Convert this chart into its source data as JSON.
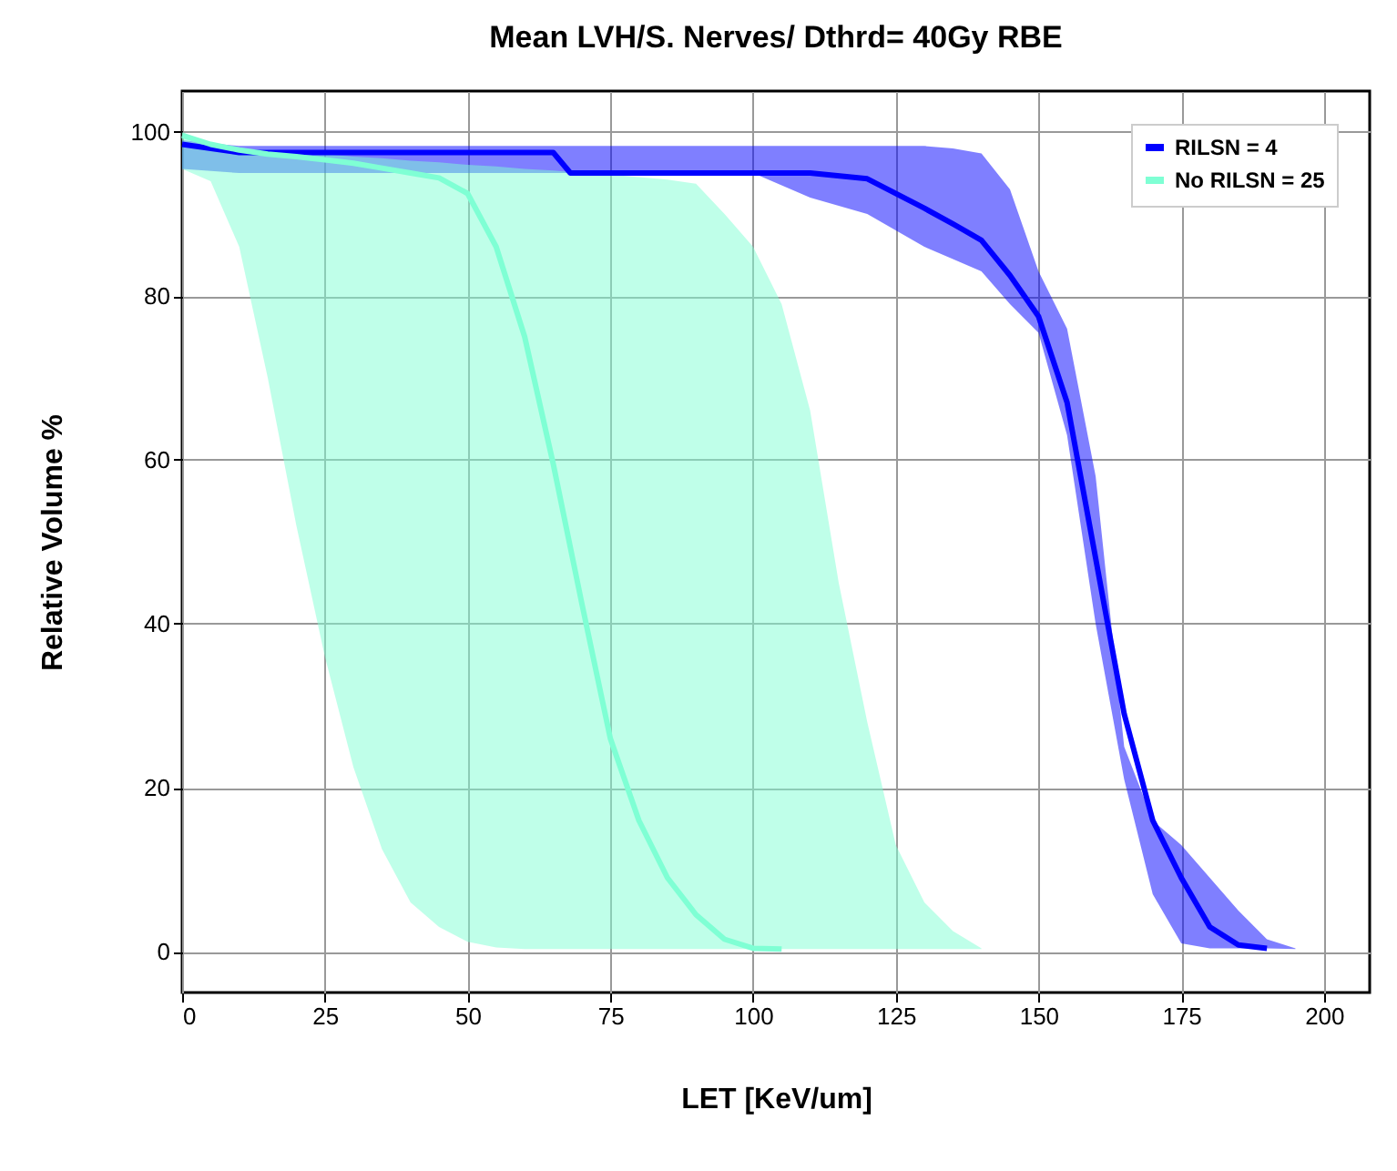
{
  "chart_data": {
    "type": "line",
    "title": "Mean LVH/S. Nerves/ Dthrd= 40Gy RBE",
    "xlabel": "LET [KeV/um]",
    "ylabel": "Relative Volume %",
    "xlim": [
      0,
      208
    ],
    "ylim": [
      -5,
      105
    ],
    "xticks": [
      0,
      25,
      50,
      75,
      100,
      125,
      150,
      175,
      200
    ],
    "yticks": [
      0,
      20,
      40,
      60,
      80,
      100
    ],
    "grid": true,
    "legend": "top right",
    "series": [
      {
        "name": "RILSN = 4",
        "color": "#0000ff",
        "x": [
          0,
          10,
          20,
          30,
          40,
          50,
          60,
          65,
          68,
          70,
          80,
          90,
          100,
          110,
          120,
          130,
          135,
          140,
          145,
          150,
          155,
          160,
          165,
          170,
          175,
          180,
          185,
          190,
          195
        ],
        "values": [
          98.5,
          97.5,
          97.5,
          97.5,
          97.5,
          97.5,
          97.5,
          97.5,
          95,
          95,
          95,
          95,
          95,
          95,
          94.3,
          90.7,
          88.8,
          86.8,
          82.5,
          77.5,
          67,
          48,
          29,
          16,
          9,
          3,
          0.8,
          0.4,
          null
        ],
        "lower": [
          95.5,
          95,
          95,
          95,
          95,
          95,
          95,
          95,
          95,
          95,
          95,
          95,
          95,
          92,
          90,
          86,
          84.5,
          83,
          79,
          75.5,
          63,
          40,
          21,
          7,
          1,
          0.4,
          0.4,
          0.4,
          0.3
        ],
        "upper": [
          99,
          98.3,
          98.3,
          98.3,
          98.3,
          98.3,
          98.3,
          98.3,
          98.3,
          98.3,
          98.3,
          98.3,
          98.3,
          98.3,
          98.3,
          98.3,
          98,
          97.4,
          93,
          83,
          76,
          58,
          25,
          16,
          13,
          9,
          5,
          1.5,
          0.4
        ]
      },
      {
        "name": "No RILSN = 25",
        "color": "#7fffd4",
        "x": [
          0,
          5,
          10,
          15,
          20,
          25,
          30,
          35,
          40,
          45,
          50,
          55,
          60,
          65,
          70,
          75,
          80,
          85,
          90,
          95,
          100,
          105,
          110,
          115,
          120,
          125,
          130,
          135,
          140
        ],
        "values": [
          99.6,
          98.5,
          97.8,
          97.3,
          97,
          96.6,
          96.2,
          95.6,
          95,
          94.4,
          92.5,
          86,
          75,
          59.5,
          42.5,
          26,
          16,
          9,
          4.5,
          1.5,
          0.4,
          0.3,
          null,
          null,
          null,
          null,
          null,
          null,
          null
        ],
        "lower": [
          95.5,
          94,
          86,
          70,
          52,
          36,
          22.5,
          12.5,
          6,
          3,
          1.2,
          0.5,
          0.3,
          0.3,
          0.3,
          0.3,
          0.3,
          0.3,
          0.3,
          0.3,
          0.3,
          0.3,
          0.3,
          0.3,
          0.3,
          0.3,
          0.3,
          0.3,
          0.3
        ],
        "upper": [
          100,
          98.5,
          98,
          97.8,
          97.5,
          97.3,
          97,
          96.8,
          96.5,
          96.3,
          96,
          95.8,
          95.5,
          95.3,
          95,
          94.8,
          94.5,
          94.2,
          93.7,
          90,
          86,
          79,
          66,
          45,
          28,
          13,
          6,
          2.5,
          0.4
        ]
      }
    ]
  }
}
